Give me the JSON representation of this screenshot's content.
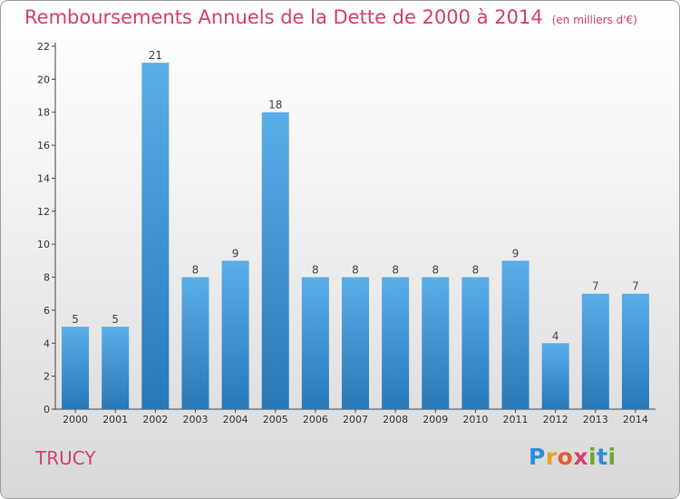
{
  "title": "Remboursements Annuels de la Dette de 2000 à 2014",
  "unit": "(en milliers d'€)",
  "commune": "TRUCY",
  "logo_text": "Proxiti",
  "colors": {
    "title": "#d4416a",
    "bar_top": "#5aaee8",
    "bar_bottom": "#2878b8"
  },
  "chart_data": {
    "type": "bar",
    "title": "Remboursements Annuels de la Dette de 2000 à 2014",
    "ylabel": "",
    "xlabel": "",
    "categories": [
      "2000",
      "2001",
      "2002",
      "2003",
      "2004",
      "2005",
      "2006",
      "2007",
      "2008",
      "2009",
      "2010",
      "2011",
      "2012",
      "2013",
      "2014"
    ],
    "values": [
      5,
      5,
      21,
      8,
      9,
      18,
      8,
      8,
      8,
      8,
      8,
      9,
      4,
      7,
      7
    ],
    "ylim": [
      0,
      22
    ],
    "yticks": [
      0,
      2,
      4,
      6,
      8,
      10,
      12,
      14,
      16,
      18,
      20,
      22
    ],
    "grid": false,
    "legend": "none"
  }
}
